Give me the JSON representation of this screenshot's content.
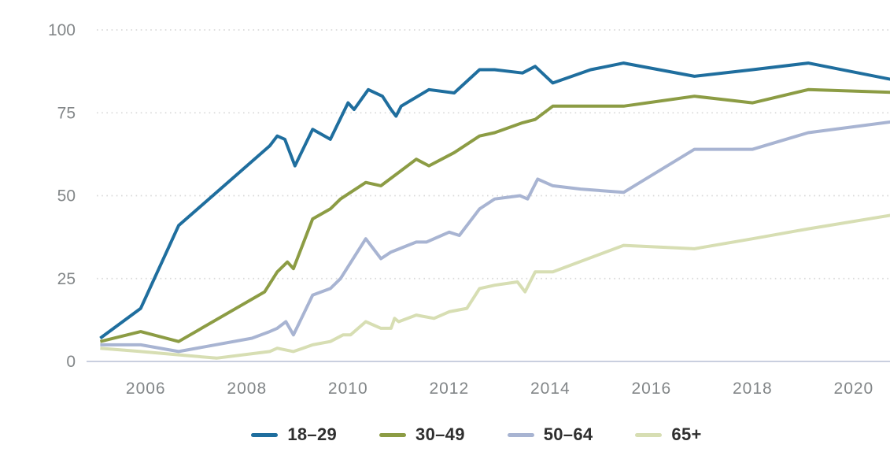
{
  "chart_data": {
    "type": "line",
    "title": "",
    "x_axis": {
      "range": [
        2005.0,
        2021.2
      ],
      "ticks": [
        2006,
        2008,
        2010,
        2012,
        2014,
        2016,
        2018,
        2020
      ]
    },
    "y_axis": {
      "range": [
        0,
        100
      ],
      "ticks": [
        0,
        25,
        50,
        75,
        100
      ]
    },
    "grid": "horizontal-dotted",
    "legend_position": "bottom",
    "series": [
      {
        "name": "18–29",
        "color": "#1F6E9E",
        "points": [
          [
            2005.1,
            7
          ],
          [
            2005.9,
            16
          ],
          [
            2006.65,
            41
          ],
          [
            2008.45,
            65
          ],
          [
            2008.6,
            68
          ],
          [
            2008.75,
            67
          ],
          [
            2008.95,
            59
          ],
          [
            2009.3,
            70
          ],
          [
            2009.65,
            67
          ],
          [
            2010.0,
            78
          ],
          [
            2010.12,
            76
          ],
          [
            2010.4,
            82
          ],
          [
            2010.68,
            80
          ],
          [
            2010.85,
            76
          ],
          [
            2010.95,
            74
          ],
          [
            2011.05,
            77
          ],
          [
            2011.6,
            82
          ],
          [
            2012.1,
            81
          ],
          [
            2012.6,
            88
          ],
          [
            2012.9,
            88
          ],
          [
            2013.45,
            87
          ],
          [
            2013.7,
            89
          ],
          [
            2014.05,
            84
          ],
          [
            2014.8,
            88
          ],
          [
            2015.45,
            90
          ],
          [
            2016.85,
            86
          ],
          [
            2018.0,
            88
          ],
          [
            2019.1,
            90
          ],
          [
            2021.1,
            84
          ]
        ]
      },
      {
        "name": "30–49",
        "color": "#8C9C44",
        "points": [
          [
            2005.1,
            6
          ],
          [
            2005.9,
            9
          ],
          [
            2006.65,
            6
          ],
          [
            2008.35,
            21
          ],
          [
            2008.6,
            27
          ],
          [
            2008.8,
            30
          ],
          [
            2008.92,
            28
          ],
          [
            2009.3,
            43
          ],
          [
            2009.65,
            46
          ],
          [
            2009.85,
            49
          ],
          [
            2010.35,
            54
          ],
          [
            2010.65,
            53
          ],
          [
            2011.35,
            61
          ],
          [
            2011.6,
            59
          ],
          [
            2012.1,
            63
          ],
          [
            2012.6,
            68
          ],
          [
            2012.9,
            69
          ],
          [
            2013.45,
            72
          ],
          [
            2013.7,
            73
          ],
          [
            2014.05,
            77
          ],
          [
            2015.45,
            77
          ],
          [
            2016.85,
            80
          ],
          [
            2018.0,
            78
          ],
          [
            2019.1,
            82
          ],
          [
            2021.1,
            81
          ]
        ]
      },
      {
        "name": "50–64",
        "color": "#A8B4D2",
        "points": [
          [
            2005.1,
            5
          ],
          [
            2005.9,
            5
          ],
          [
            2006.65,
            3
          ],
          [
            2008.1,
            7
          ],
          [
            2008.45,
            9
          ],
          [
            2008.6,
            10
          ],
          [
            2008.77,
            12
          ],
          [
            2008.92,
            8
          ],
          [
            2009.3,
            20
          ],
          [
            2009.65,
            22
          ],
          [
            2009.85,
            25
          ],
          [
            2010.35,
            37
          ],
          [
            2010.65,
            31
          ],
          [
            2010.85,
            33
          ],
          [
            2011.35,
            36
          ],
          [
            2011.55,
            36
          ],
          [
            2011.85,
            38
          ],
          [
            2012.0,
            39
          ],
          [
            2012.2,
            38
          ],
          [
            2012.6,
            46
          ],
          [
            2012.9,
            49
          ],
          [
            2013.4,
            50
          ],
          [
            2013.55,
            49
          ],
          [
            2013.75,
            55
          ],
          [
            2014.05,
            53
          ],
          [
            2014.6,
            52
          ],
          [
            2015.45,
            51
          ],
          [
            2016.85,
            64
          ],
          [
            2018.0,
            64
          ],
          [
            2019.1,
            69
          ],
          [
            2021.1,
            73
          ]
        ]
      },
      {
        "name": "65+",
        "color": "#D7DEB3",
        "points": [
          [
            2005.1,
            4
          ],
          [
            2005.9,
            3
          ],
          [
            2006.65,
            2
          ],
          [
            2007.4,
            1
          ],
          [
            2008.45,
            3
          ],
          [
            2008.6,
            4
          ],
          [
            2008.92,
            3
          ],
          [
            2009.3,
            5
          ],
          [
            2009.65,
            6
          ],
          [
            2009.9,
            8
          ],
          [
            2010.05,
            8
          ],
          [
            2010.35,
            12
          ],
          [
            2010.65,
            10
          ],
          [
            2010.85,
            10
          ],
          [
            2010.92,
            13
          ],
          [
            2011.0,
            12
          ],
          [
            2011.35,
            14
          ],
          [
            2011.7,
            13
          ],
          [
            2012.0,
            15
          ],
          [
            2012.35,
            16
          ],
          [
            2012.6,
            22
          ],
          [
            2012.9,
            23
          ],
          [
            2013.35,
            24
          ],
          [
            2013.5,
            21
          ],
          [
            2013.7,
            27
          ],
          [
            2014.05,
            27
          ],
          [
            2015.45,
            35
          ],
          [
            2016.85,
            34
          ],
          [
            2018.0,
            37
          ],
          [
            2019.1,
            40
          ],
          [
            2021.1,
            45
          ]
        ]
      }
    ]
  },
  "colors": {
    "background": "#FFFFFF",
    "grid": "#D9D9D9",
    "axis_line": "#C9CFDF",
    "tick_label": "#828688",
    "legend_text": "#2F2F2F"
  }
}
